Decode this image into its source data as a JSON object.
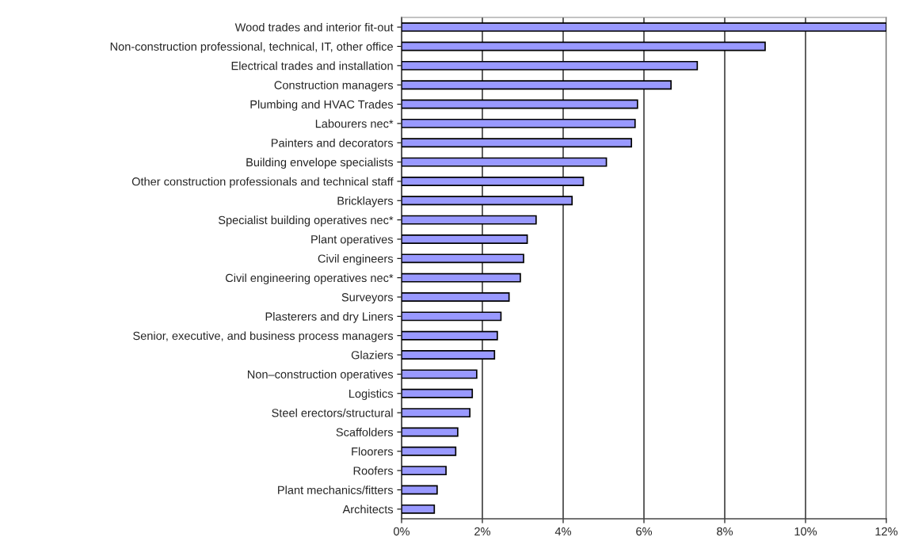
{
  "chart_data": {
    "type": "bar",
    "orientation": "horizontal",
    "categories": [
      "Wood trades and interior fit-out",
      "Non-construction professional, technical, IT, other office",
      "Electrical trades and installation",
      "Construction managers",
      "Plumbing and HVAC Trades",
      "Labourers nec*",
      "Painters and decorators",
      "Building envelope specialists",
      "Other construction professionals and technical staff",
      "Bricklayers",
      "Specialist building operatives nec*",
      "Plant operatives",
      "Civil engineers",
      "Civil engineering operatives nec*",
      "Surveyors",
      "Plasterers and dry Liners",
      "Senior, executive, and business process managers",
      "Glaziers",
      "Non–construction operatives",
      "Logistics",
      "Steel erectors/structural",
      "Scaffolders",
      "Floorers",
      "Roofers",
      "Plant mechanics/fitters",
      "Architects"
    ],
    "values": [
      12.0,
      9.0,
      7.32,
      6.67,
      5.84,
      5.78,
      5.69,
      5.07,
      4.5,
      4.22,
      3.33,
      3.11,
      3.02,
      2.94,
      2.66,
      2.46,
      2.37,
      2.3,
      1.86,
      1.75,
      1.69,
      1.39,
      1.34,
      1.1,
      0.88,
      0.81
    ],
    "color": "#9999ff",
    "xlim": [
      0,
      12
    ],
    "xticks": [
      {
        "value": 0,
        "label": "0%"
      },
      {
        "value": 2,
        "label": "2%"
      },
      {
        "value": 4,
        "label": "4%"
      },
      {
        "value": 6,
        "label": "6%"
      },
      {
        "value": 8,
        "label": "8%"
      },
      {
        "value": 10,
        "label": "10%"
      },
      {
        "value": 12,
        "label": "12%"
      }
    ],
    "grid": "x",
    "legend": false
  }
}
